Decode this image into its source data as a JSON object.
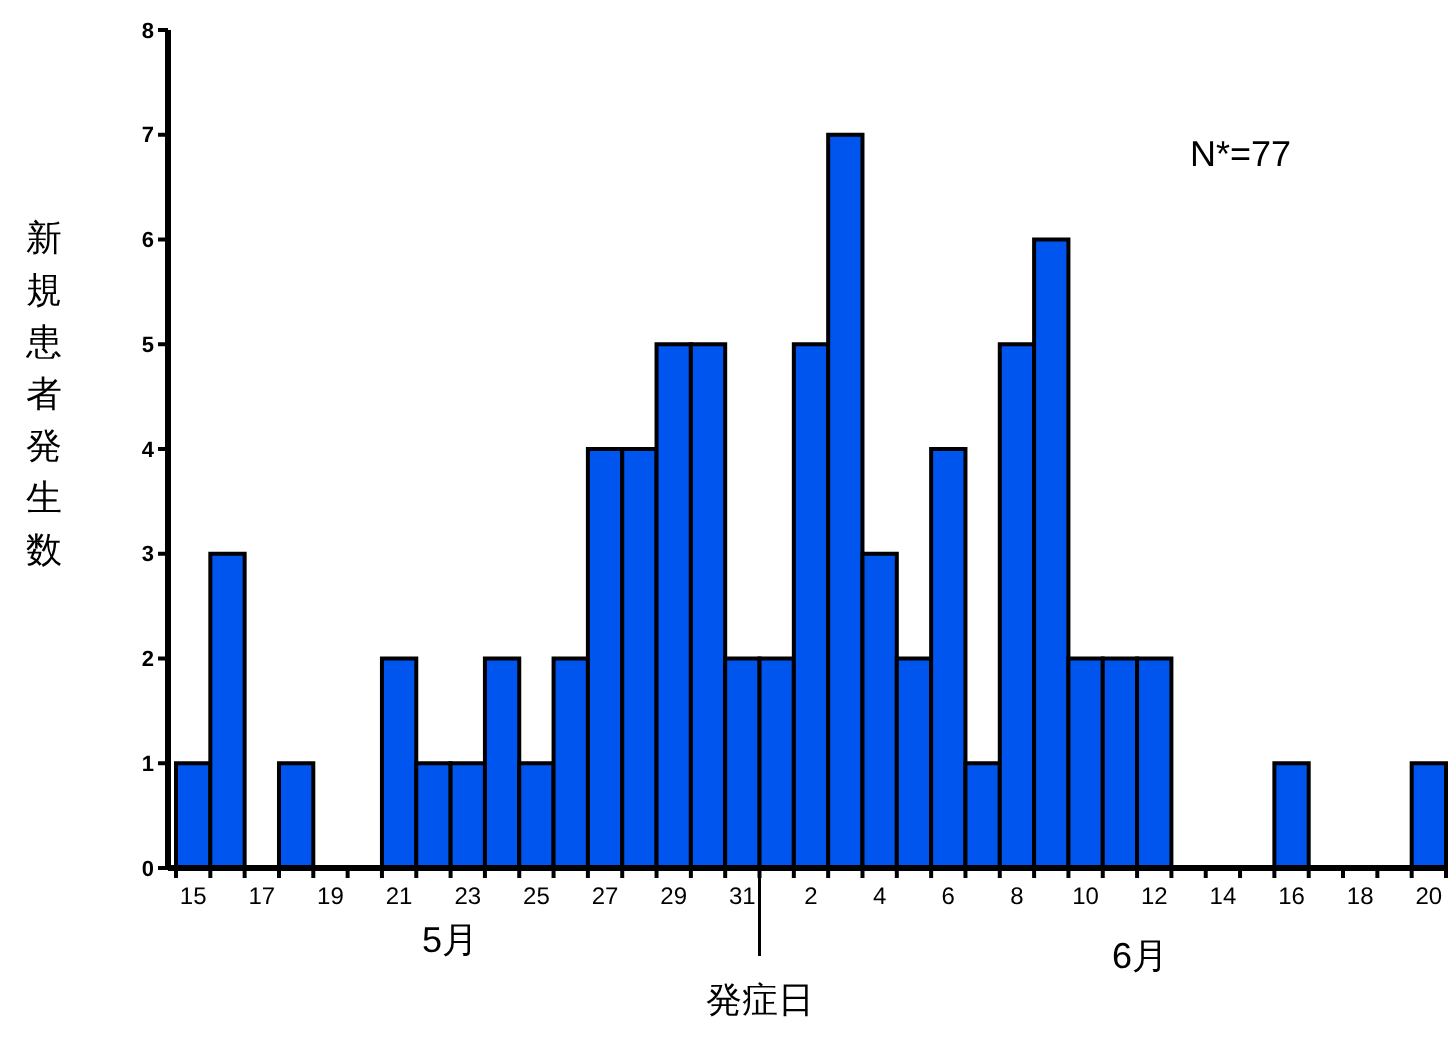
{
  "chart_data": {
    "type": "bar",
    "xlabel": "発症日",
    "ylabel": "新規患者発生数",
    "categories": [
      "15",
      null,
      "17",
      null,
      "19",
      null,
      "21",
      null,
      "23",
      null,
      "25",
      null,
      "27",
      null,
      "29",
      null,
      "31",
      null,
      "2",
      null,
      "4",
      null,
      "6",
      null,
      "8",
      null,
      "10",
      null,
      "12",
      null,
      "14",
      null,
      "16",
      null,
      "18",
      null,
      "20"
    ],
    "values": [
      1,
      3,
      0,
      1,
      0,
      0,
      2,
      1,
      1,
      2,
      1,
      2,
      4,
      4,
      5,
      5,
      2,
      2,
      5,
      7,
      3,
      2,
      4,
      1,
      5,
      6,
      2,
      2,
      2,
      0,
      0,
      0,
      1,
      0,
      0,
      0,
      1
    ],
    "color": "#0055ee",
    "ylim": [
      0,
      8
    ],
    "yticks": [
      0,
      1,
      2,
      3,
      4,
      5,
      6,
      7,
      8
    ],
    "grid": false,
    "annotations": [
      "5月",
      "6月",
      "N*=77"
    ]
  }
}
